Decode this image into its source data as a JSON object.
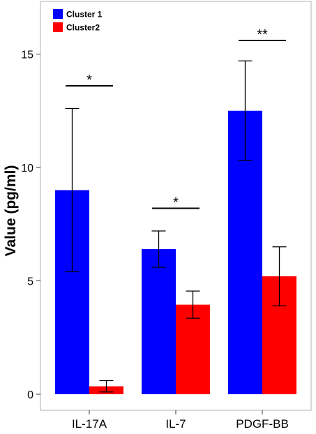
{
  "chart_data": {
    "type": "bar",
    "title": "",
    "xlabel": "",
    "ylabel": "Value (pg/ml)",
    "ylim": [
      0,
      17
    ],
    "yticks": [
      0,
      5,
      10,
      15
    ],
    "grid": false,
    "legend_position": "top-left",
    "categories": [
      "IL-17A",
      "IL-7",
      "PDGF-BB"
    ],
    "series": [
      {
        "name": "Cluster 1",
        "color": "#0000ff",
        "values": [
          9.0,
          6.4,
          12.5
        ],
        "error_low": [
          5.4,
          5.6,
          10.3
        ],
        "error_high": [
          12.6,
          7.2,
          14.7
        ]
      },
      {
        "name": "Cluster2",
        "color": "#ff0000",
        "values": [
          0.35,
          3.95,
          5.2
        ],
        "error_low": [
          0.1,
          3.35,
          3.9
        ],
        "error_high": [
          0.6,
          4.55,
          6.5
        ]
      }
    ],
    "significance": [
      {
        "category": "IL-17A",
        "label": "*",
        "y": 13.6
      },
      {
        "category": "IL-7",
        "label": "*",
        "y": 8.2
      },
      {
        "category": "PDGF-BB",
        "label": "**",
        "y": 15.6
      }
    ]
  }
}
